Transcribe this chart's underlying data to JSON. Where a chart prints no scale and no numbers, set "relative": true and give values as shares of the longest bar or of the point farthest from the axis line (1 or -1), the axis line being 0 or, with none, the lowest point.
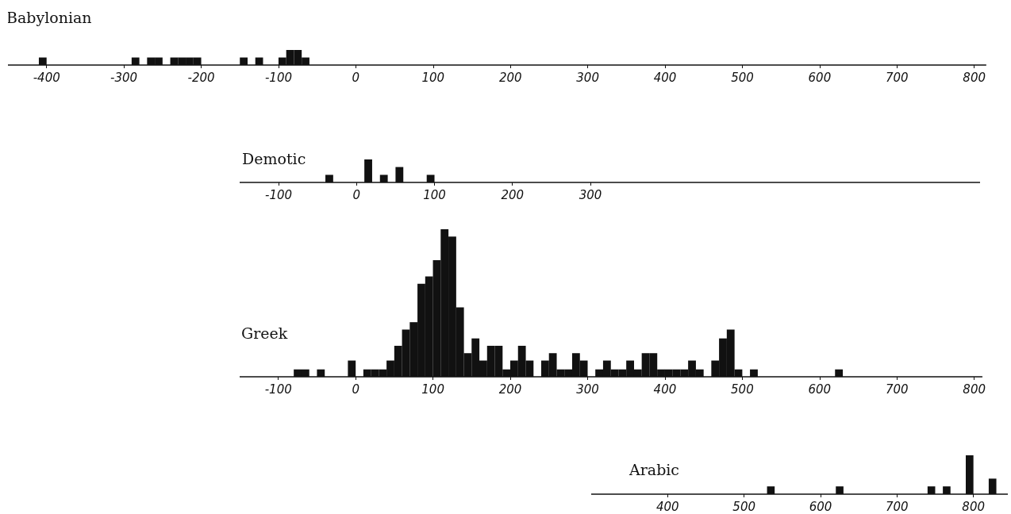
{
  "chart_data": [
    {
      "type": "bar",
      "title": "Babylonian",
      "relative": true,
      "color": "#111111",
      "x": [
        -405,
        -395,
        -385,
        -375,
        -365,
        -355,
        -345,
        -335,
        -325,
        -315,
        -305,
        -295,
        -285,
        -275,
        -265,
        -255,
        -245,
        -235,
        -225,
        -215,
        -205,
        -195,
        -185,
        -175,
        -165,
        -155,
        -145,
        -135,
        -125,
        -115,
        -105,
        -95,
        -85,
        -75,
        -65
      ],
      "values": [
        0.5,
        0,
        0,
        0,
        0,
        0,
        0,
        0,
        0,
        0,
        0,
        0,
        0.5,
        0,
        0.5,
        0.5,
        0,
        0.5,
        0.5,
        0.5,
        0.5,
        0,
        0,
        0,
        0,
        0,
        0.5,
        0,
        0.5,
        0,
        0,
        0.5,
        1,
        1,
        0.5
      ],
      "xlim": [
        -450,
        815
      ],
      "xticks": [
        -400,
        -300,
        -200,
        -100,
        0,
        100,
        200,
        300,
        400,
        500,
        600,
        700,
        800
      ]
    },
    {
      "type": "bar",
      "title": "Demotic",
      "relative": true,
      "color": "#111111",
      "x": [
        -35,
        -25,
        -15,
        -5,
        5,
        15,
        25,
        35,
        45,
        55,
        65,
        75,
        85,
        95
      ],
      "values": [
        0.33,
        0,
        0,
        0,
        0,
        1,
        0,
        0.33,
        0,
        0.67,
        0,
        0,
        0,
        0.33
      ],
      "xlim": [
        -150,
        800
      ],
      "xticks": [
        -100,
        0,
        100,
        200,
        300
      ]
    },
    {
      "type": "bar",
      "title": "Greek",
      "relative": true,
      "color": "#111111",
      "x": [
        -75,
        -65,
        -55,
        -45,
        -35,
        -25,
        -15,
        -5,
        5,
        15,
        25,
        35,
        45,
        55,
        65,
        75,
        85,
        95,
        105,
        115,
        125,
        135,
        145,
        155,
        165,
        175,
        185,
        195,
        205,
        215,
        225,
        235,
        245,
        255,
        265,
        275,
        285,
        295,
        305,
        315,
        325,
        335,
        345,
        355,
        365,
        375,
        385,
        395,
        405,
        415,
        425,
        435,
        445,
        455,
        465,
        475,
        485,
        495,
        505,
        515,
        525,
        535,
        545,
        555,
        565,
        575,
        585,
        595,
        605,
        615,
        625
      ],
      "values": [
        0.05,
        0.05,
        0,
        0.05,
        0,
        0,
        0,
        0.11,
        0,
        0.05,
        0.05,
        0.05,
        0.11,
        0.21,
        0.32,
        0.37,
        0.63,
        0.68,
        0.79,
        1,
        0.95,
        0.47,
        0.16,
        0.26,
        0.11,
        0.21,
        0.21,
        0.05,
        0.11,
        0.21,
        0.11,
        0,
        0.11,
        0.16,
        0.05,
        0.05,
        0.16,
        0.11,
        0,
        0.05,
        0.11,
        0.05,
        0.05,
        0.11,
        0.05,
        0.16,
        0.16,
        0.05,
        0.05,
        0.05,
        0.05,
        0.11,
        0.05,
        0,
        0.11,
        0.26,
        0.32,
        0.05,
        0,
        0.05,
        0,
        0,
        0,
        0,
        0,
        0,
        0,
        0,
        0,
        0,
        0.05
      ],
      "xlim": [
        -150,
        810
      ],
      "xticks": [
        -100,
        0,
        100,
        200,
        300,
        400,
        500,
        600,
        700,
        800
      ]
    },
    {
      "type": "bar",
      "title": "Arabic",
      "relative": true,
      "color": "#111111",
      "x": [
        535,
        545,
        555,
        565,
        575,
        585,
        595,
        605,
        615,
        625,
        635,
        645,
        655,
        665,
        675,
        685,
        695,
        705,
        715,
        725,
        735,
        745,
        755,
        765,
        775,
        785,
        795,
        805,
        815,
        825
      ],
      "values": [
        0.2,
        0,
        0,
        0,
        0,
        0,
        0,
        0,
        0,
        0.2,
        0,
        0,
        0,
        0,
        0,
        0,
        0,
        0,
        0,
        0,
        0,
        0.2,
        0,
        0.2,
        0,
        0,
        1,
        0,
        0,
        0.4
      ],
      "xlim": [
        300,
        845
      ],
      "xticks": [
        400,
        500,
        600,
        700,
        800
      ]
    }
  ]
}
